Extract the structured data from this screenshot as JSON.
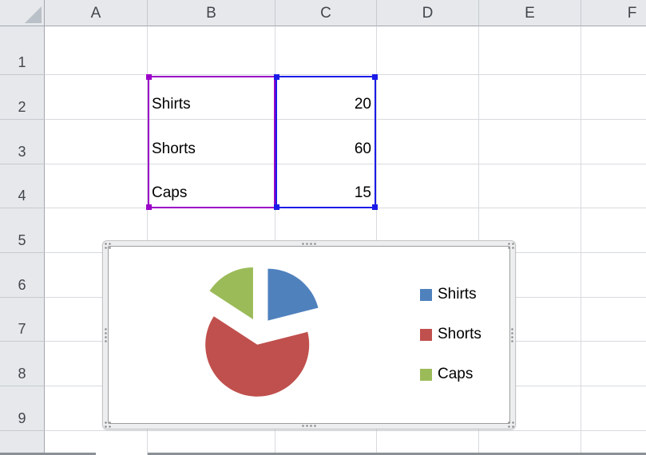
{
  "window": {
    "type": "spreadsheet-worksheet"
  },
  "sheet": {
    "column_labels": [
      "A",
      "B",
      "C",
      "D",
      "E",
      "F"
    ],
    "row_labels": [
      "1",
      "2",
      "3",
      "4",
      "5",
      "6",
      "7",
      "8",
      "9"
    ],
    "cells": [
      {
        "ref": "B2",
        "label": "Shirts",
        "value": "20"
      },
      {
        "ref": "B3",
        "label": "Shorts",
        "value": "60"
      },
      {
        "ref": "B4",
        "label": "Caps",
        "value": "15"
      }
    ],
    "selected_category_range": "B2:B4",
    "selected_value_range": "C2:C4"
  },
  "selection": {
    "category_border_color": "#9B00C8",
    "value_border_color": "#1B1BE8"
  },
  "chart_data": {
    "type": "pie",
    "title": "",
    "categories": [
      "Shirts",
      "Shorts",
      "Caps"
    ],
    "values": [
      20,
      60,
      15
    ],
    "colors": [
      "#4F81BD",
      "#C0504D",
      "#9BBB59"
    ],
    "exploded": true,
    "start_angle_deg": 0,
    "direction": "clockwise",
    "legend_position": "right",
    "legend_entries": [
      "Shirts",
      "Shorts",
      "Caps"
    ]
  }
}
